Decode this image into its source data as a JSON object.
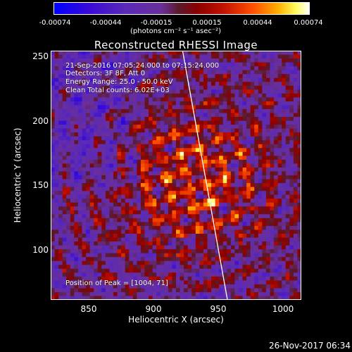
{
  "colorbar": {
    "ticks": [
      "-0.00074",
      "-0.00044",
      "-0.00015",
      "0.00015",
      "0.00044",
      "0.00074"
    ],
    "unit_label": "(photons cm⁻² s⁻¹ asec⁻²)"
  },
  "chart_data": {
    "type": "heatmap",
    "title": "Reconstructed RHESSI Image",
    "xlabel": "Heliocentric X (arcsec)",
    "ylabel": "Heliocentric Y (arcsec)",
    "xlim": [
      822,
      1012
    ],
    "ylim": [
      62,
      252
    ],
    "x_ticks": [
      "850",
      "900",
      "950",
      "1000"
    ],
    "y_ticks": [
      "100",
      "150",
      "200",
      "250"
    ],
    "x_tick_values": [
      850,
      900,
      950,
      1000
    ],
    "y_tick_values": [
      100,
      150,
      200,
      250
    ],
    "colorscale_range": [
      -0.00074,
      0.00074
    ],
    "peak": [
      1004,
      71
    ],
    "limb_line": [
      [
        922,
        252
      ],
      [
        956,
        62
      ]
    ],
    "annotations": {
      "time": "21-Sep-2016 07:05:24.000 to 07:15:24.000",
      "detectors": "Detectors: 3F 8F, Att 0",
      "energy": "Energy Range: 25.0 - 50.0 keV",
      "method": "Clean     Total counts: 6.02E+03",
      "peak": "Position of Peak = [1004, 71]"
    }
  },
  "footer": {
    "date": "26-Nov-2017 06:34"
  },
  "colors": {
    "background": "#000000",
    "limb": "#ffffff"
  }
}
